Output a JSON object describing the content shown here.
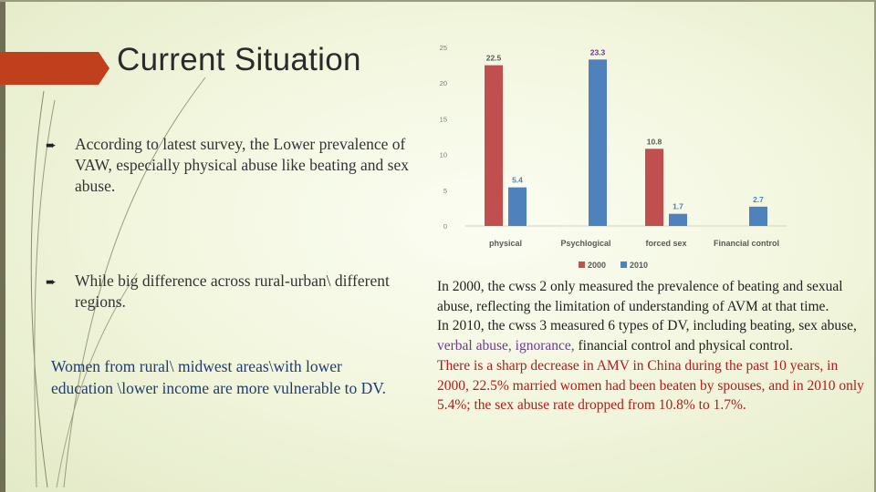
{
  "slide": {
    "title": "Current Situation",
    "bullets": [
      "According to latest survey,  the Lower prevalence of VAW, especially physical abuse like beating and sex abuse.",
      "While big difference across rural-urban\\ different regions."
    ],
    "note": "Women from rural\\ midwest areas\\with lower education \\lower income are more vulnerable to DV.",
    "paragraph": {
      "p1": "In 2000, the cwss 2 only measured the prevalence of beating and sexual abuse, reflecting the limitation of understanding of AVM at that time.",
      "p2_start": "In 2010, the cwss 3 measured 6 types of DV, including beating, sex abuse, ",
      "p2_highlight": "verbal abuse, ignorance,",
      "p2_end": " financial control and physical control.",
      "p3": "There is a sharp decrease in AMV in China during the past 10 years, in 2000, 22.5% married women had been beaten by spouses, and in 2010 only 5.4%; the sex abuse rate dropped from 10.8% to 1.7%."
    },
    "colors": {
      "accent_bar": "#c0401e",
      "series_2000": "#c0504d",
      "series_2010": "#4f81bd"
    }
  },
  "chart_data": {
    "type": "bar",
    "categories": [
      "physical",
      "Psychlogical",
      "forced sex",
      "Financial control"
    ],
    "series": [
      {
        "name": "2000",
        "values": [
          22.5,
          null,
          10.8,
          null
        ],
        "color": "#c0504d"
      },
      {
        "name": "2010",
        "values": [
          5.4,
          23.3,
          1.7,
          2.7
        ],
        "color": "#4f81bd"
      }
    ],
    "data_labels": {
      "2000": [
        "22.5",
        "",
        "10.8",
        ""
      ],
      "2010": [
        "5.4",
        "23.3",
        "1.7",
        "2.7"
      ]
    },
    "yticks": [
      "0",
      "5",
      "10",
      "15",
      "20",
      "25"
    ],
    "ylim": [
      0,
      25
    ],
    "grid": false,
    "legend_position": "bottom",
    "title": "",
    "xlabel": "",
    "ylabel": ""
  }
}
